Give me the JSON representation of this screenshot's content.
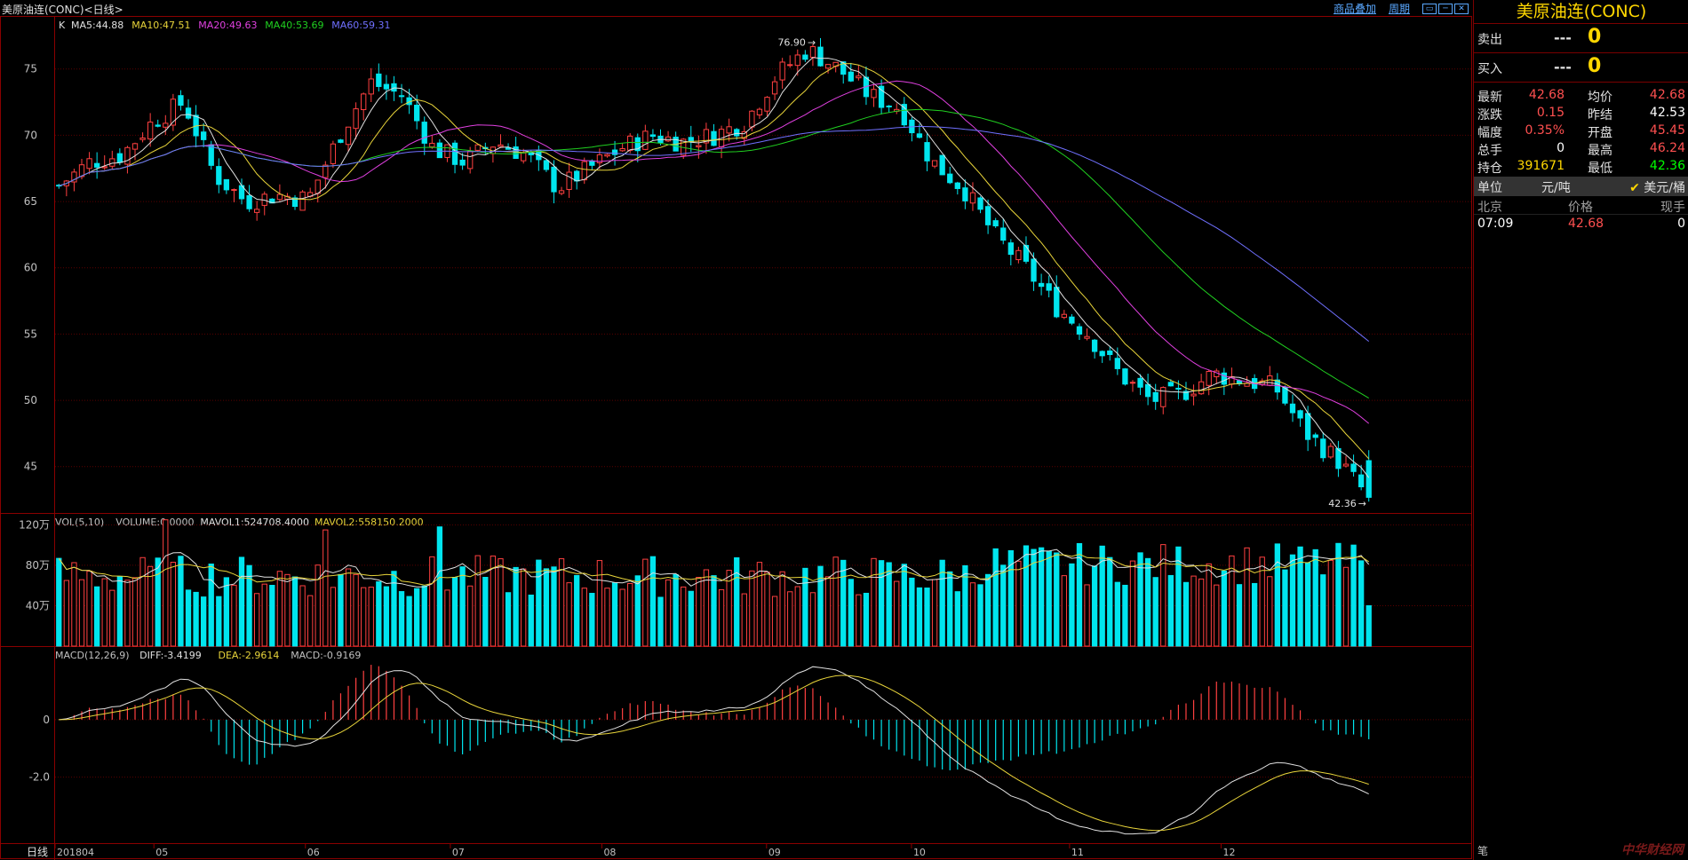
{
  "window": {
    "title": "美原油连(CONC)<日线>",
    "links": [
      "商品叠加",
      "周期"
    ]
  },
  "panels": {
    "price": {
      "label_k": "K",
      "ma_labels": [
        {
          "text": "MA5:44.88",
          "color": "#e0e0e0"
        },
        {
          "text": "MA10:47.51",
          "color": "#e8d43a"
        },
        {
          "text": "MA20:49.63",
          "color": "#e040e0"
        },
        {
          "text": "MA40:53.69",
          "color": "#20d020"
        },
        {
          "text": "MA60:59.31",
          "color": "#7070ff"
        }
      ],
      "y_ticks": [
        "75",
        "70",
        "65",
        "60",
        "55",
        "50",
        "45"
      ],
      "high_label": "76.90",
      "low_label": "42.36"
    },
    "volume": {
      "header": [
        {
          "text": "VOL(5,10)",
          "color": "#c0c0c0"
        },
        {
          "text": "VOLUME:0.0000",
          "color": "#c0c0c0"
        },
        {
          "text": "MAVOL1:524708.4000",
          "color": "#e0e0e0"
        },
        {
          "text": "MAVOL2:558150.2000",
          "color": "#e8d43a"
        }
      ],
      "y_ticks": [
        "120万",
        "80万",
        "40万"
      ]
    },
    "macd": {
      "header": [
        {
          "text": "MACD(12,26,9)",
          "color": "#c0c0c0"
        },
        {
          "text": "DIFF:-3.4199",
          "color": "#e0e0e0"
        },
        {
          "text": "DEA:-2.9614",
          "color": "#e8d43a"
        },
        {
          "text": "MACD:-0.9169",
          "color": "#c0c0c0"
        }
      ],
      "y_ticks": [
        "0",
        "-2.0"
      ]
    },
    "x_axis": {
      "period_label": "日线",
      "labels": [
        "201804",
        "05",
        "06",
        "07",
        "08",
        "09",
        "10",
        "11",
        "12"
      ]
    }
  },
  "chart_data": {
    "type": "candlestick",
    "title": "美原油连(CONC)",
    "ylim": [
      41.5,
      79
    ],
    "x_labels": [
      "201804",
      "05",
      "06",
      "07",
      "08",
      "09",
      "10",
      "11",
      "12"
    ],
    "ohlc_anchor_closes": [
      66.2,
      68.0,
      68.5,
      71.0,
      72.5,
      67.0,
      65.0,
      65.5,
      65.2,
      70.0,
      74.0,
      73.0,
      69.0,
      68.0,
      69.5,
      68.5,
      66.0,
      67.5,
      69.0,
      70.0,
      69.5,
      70.0,
      71.0,
      74.5,
      76.5,
      75.0,
      73.0,
      72.0,
      68.0,
      66.0,
      62.5,
      60.0,
      57.0,
      55.0,
      52.0,
      50.0,
      50.5,
      52.0,
      51.5,
      51.0,
      47.5,
      45.5,
      42.68
    ],
    "high": 76.9,
    "low": 42.36,
    "series": [
      {
        "name": "MA5",
        "value": 44.88,
        "color": "#e0e0e0"
      },
      {
        "name": "MA10",
        "value": 47.51,
        "color": "#e8d43a"
      },
      {
        "name": "MA20",
        "value": 49.63,
        "color": "#e040e0"
      },
      {
        "name": "MA40",
        "value": 53.69,
        "color": "#20d020"
      },
      {
        "name": "MA60",
        "value": 59.31,
        "color": "#7070ff"
      }
    ],
    "volume": {
      "MAVOL1": 524708.4,
      "MAVOL2": 558150.2,
      "ylim": [
        0,
        1300000
      ]
    },
    "macd": {
      "DIFF": -3.4199,
      "DEA": -2.9614,
      "MACD": -0.9169
    },
    "colors": {
      "up": "#ff4040",
      "down": "#00e5ee",
      "grid": "#5a0000"
    }
  },
  "quote": {
    "name": "美原油连(CONC)",
    "sell": {
      "label": "卖出",
      "dash": "---",
      "value": "0"
    },
    "buy": {
      "label": "买入",
      "dash": "---",
      "value": "0"
    },
    "rows": [
      {
        "l": "最新",
        "v": "42.68",
        "vc": "red",
        "l2": "均价",
        "v2": "42.68",
        "v2c": "red"
      },
      {
        "l": "涨跌",
        "v": "0.15",
        "vc": "red",
        "l2": "昨结",
        "v2": "42.53",
        "v2c": "white"
      },
      {
        "l": "幅度",
        "v": "0.35%",
        "vc": "red",
        "l2": "开盘",
        "v2": "45.45",
        "v2c": "red"
      },
      {
        "l": "总手",
        "v": "0",
        "vc": "white",
        "l2": "最高",
        "v2": "46.24",
        "v2c": "red"
      },
      {
        "l": "持仓",
        "v": "391671",
        "vc": "yel",
        "l2": "最低",
        "v2": "42.36",
        "v2c": "grn"
      }
    ],
    "unit": {
      "label": "单位",
      "value": "元/吨",
      "alt": "美元/桶"
    },
    "trades_header": {
      "c1": "北京",
      "c2": "价格",
      "c3": "现手"
    },
    "trades": [
      {
        "time": "07:09",
        "price": "42.68",
        "qty": "0"
      }
    ],
    "bottom_tab": "笔",
    "watermark": "中华财经网"
  }
}
